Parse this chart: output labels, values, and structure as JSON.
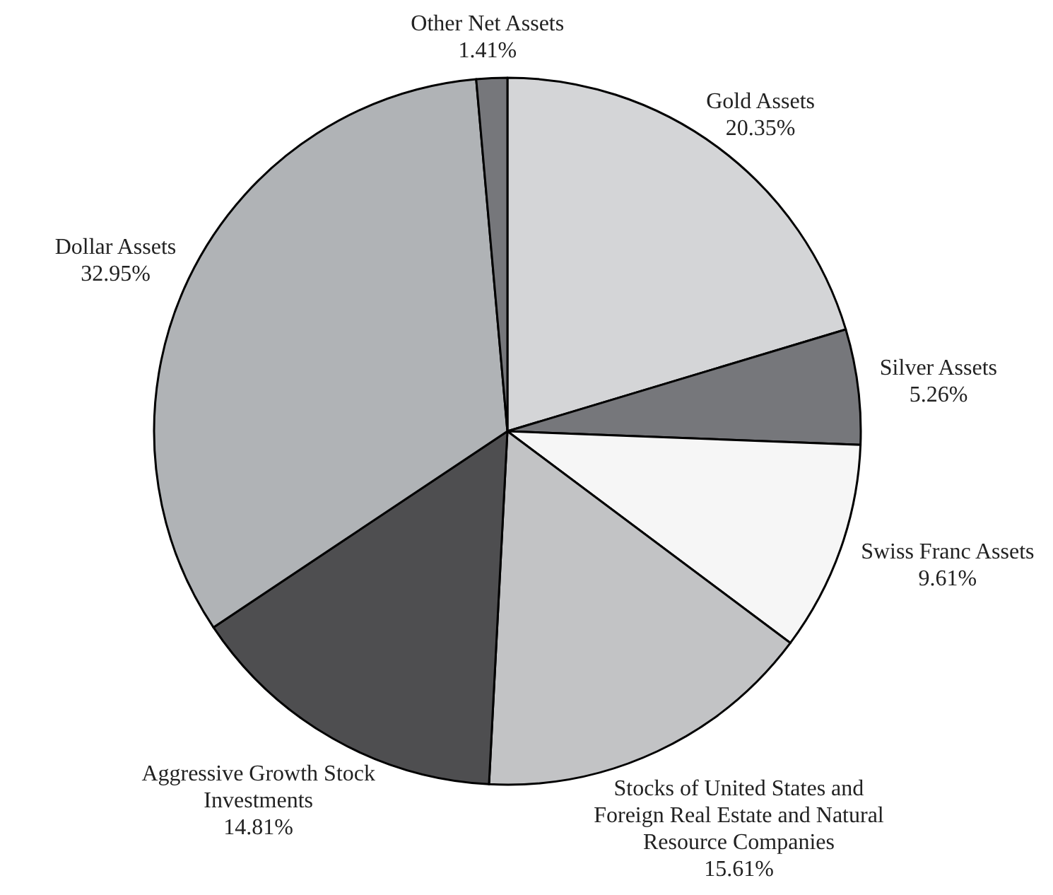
{
  "chart_data": {
    "type": "pie",
    "categories": [
      "Gold Assets",
      "Silver Assets",
      "Swiss Franc Assets",
      "Stocks of United States and Foreign Real Estate and Natural Resource Companies",
      "Aggressive Growth Stock Investments",
      "Dollar Assets",
      "Other Net Assets"
    ],
    "values": [
      20.35,
      5.26,
      9.61,
      15.61,
      14.81,
      32.95,
      1.41
    ],
    "value_labels": [
      "20.35%",
      "5.26%",
      "9.61%",
      "15.61%",
      "14.81%",
      "32.95%",
      "1.41%"
    ],
    "colors": [
      "#d4d5d7",
      "#76777b",
      "#f6f6f6",
      "#c2c3c5",
      "#4e4e50",
      "#b0b3b6",
      "#76777b"
    ]
  }
}
